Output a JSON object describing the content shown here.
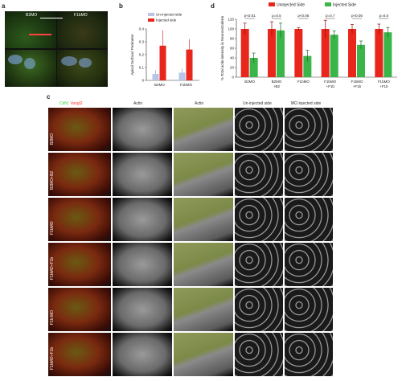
{
  "panels": {
    "a": "a",
    "b": "b",
    "c": "c",
    "d": "d"
  },
  "panel_a": {
    "left_label": "B2MO",
    "right_label": "F1bMO"
  },
  "panel_c": {
    "col_headers": {
      "stain_red": "Vangl2",
      "stain_green": "Cdh1",
      "actin1": "Actin",
      "actin2": "Actin",
      "uninjected": "Un-injected side",
      "mo_injected": "MO injected side"
    },
    "rows": [
      "B2MO",
      "B2MO+B2",
      "F1bMO",
      "F1bMO+F1b",
      "F1b MO",
      "F1bMO+F1b"
    ]
  },
  "chart_data": [
    {
      "type": "bar",
      "panel": "b",
      "categories": [
        "B2MO",
        "F1bMO"
      ],
      "series": [
        {
          "name": "Un-injected side",
          "values": [
            0.05,
            0.06
          ],
          "color": "#b8c4e8"
        },
        {
          "name": "Injected side",
          "values": [
            0.27,
            0.24
          ],
          "color": "#e8261c"
        }
      ],
      "errors": [
        [
          0.03,
          0.03
        ],
        [
          0.12,
          0.08
        ]
      ],
      "ylabel": "Apical Surface/ Perimeter",
      "ylim": [
        0,
        0.4
      ],
      "yticks": [
        "0",
        "0.1",
        "0.2",
        "0.3",
        "0.4"
      ],
      "legend": "top"
    },
    {
      "type": "bar",
      "panel": "d",
      "categories": [
        "B2MO",
        "B2MO +B2",
        "F1bMO",
        "F1bMO +F1b",
        "F1bMO +F1b",
        "F1bMO +F1b"
      ],
      "series": [
        {
          "name": "Uninjected Side",
          "values": [
            100,
            100,
            100,
            100,
            100,
            100
          ],
          "color": "#e8261c"
        },
        {
          "name": "Injected Side",
          "values": [
            40,
            97,
            44,
            88,
            67,
            93
          ],
          "color": "#3ab54a"
        }
      ],
      "errors": [
        [
          12,
          15,
          3,
          18,
          9,
          10
        ],
        [
          10,
          15,
          12,
          8,
          8,
          10
        ]
      ],
      "pvalues": [
        "p<0.01",
        "p=0.5",
        "p<0.05",
        "p=0.7",
        "p<0.05",
        "p=0.5"
      ],
      "ylabel": "% Total actin intensity in Neuroectoderm",
      "ylim": [
        0,
        120
      ],
      "yticks": [
        "0",
        "20",
        "40",
        "60",
        "80",
        "100",
        "120"
      ],
      "legend": "top"
    }
  ]
}
